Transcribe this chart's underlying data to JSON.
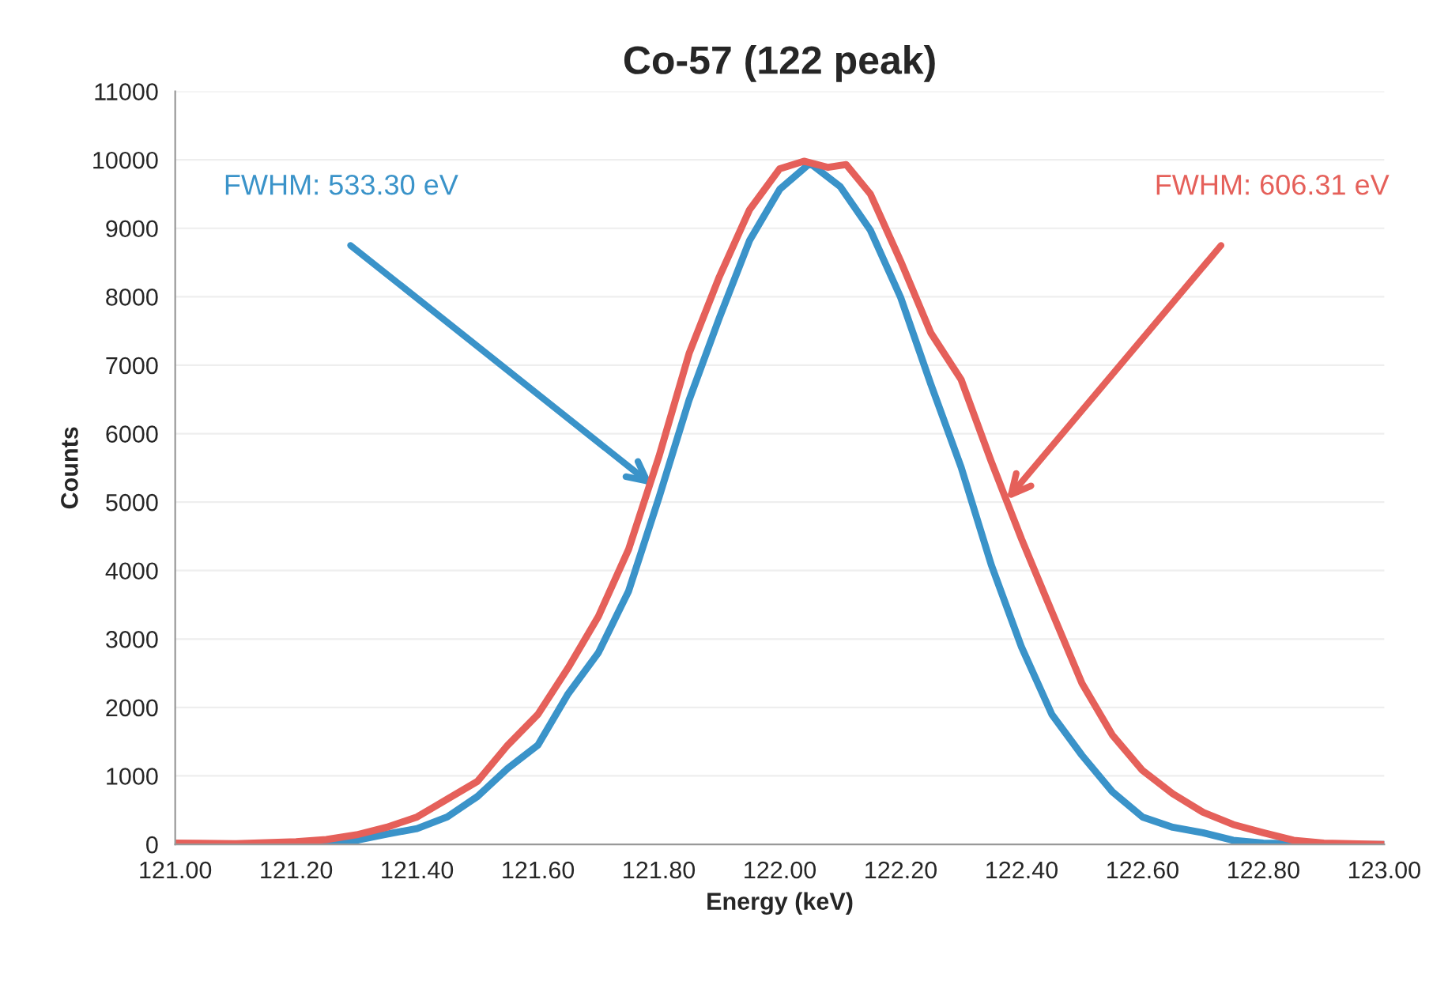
{
  "chart_data": {
    "type": "line",
    "title": "Co-57 (122 peak)",
    "xlabel": "Energy (keV)",
    "ylabel": "Counts",
    "xlim": [
      121.0,
      123.0
    ],
    "xticks": [
      {
        "value": 121.0,
        "label": "121.00"
      },
      {
        "value": 121.2,
        "label": "121.20"
      },
      {
        "value": 121.4,
        "label": "121.40"
      },
      {
        "value": 121.6,
        "label": "121.60"
      },
      {
        "value": 121.8,
        "label": "121.80"
      },
      {
        "value": 122.0,
        "label": "122.00"
      },
      {
        "value": 122.2,
        "label": "122.20"
      },
      {
        "value": 122.4,
        "label": "122.40"
      },
      {
        "value": 122.6,
        "label": "122.60"
      },
      {
        "value": 122.8,
        "label": "122.80"
      },
      {
        "value": 123.0,
        "label": "123.00"
      }
    ],
    "ylim": [
      0,
      11000
    ],
    "yticks": [
      0,
      1000,
      2000,
      3000,
      4000,
      5000,
      6000,
      7000,
      8000,
      9000,
      10000,
      11000
    ],
    "grid": "y",
    "line_style": "solid",
    "marker": "none",
    "series": [
      {
        "color": "#3a93c9",
        "x": [
          121.0,
          121.1,
          121.2,
          121.3,
          121.35,
          121.4,
          121.45,
          121.5,
          121.55,
          121.6,
          121.65,
          121.7,
          121.75,
          121.8,
          121.85,
          121.9,
          121.95,
          122.0,
          122.05,
          122.1,
          122.15,
          122.2,
          122.25,
          122.3,
          122.35,
          122.4,
          122.45,
          122.5,
          122.55,
          122.6,
          122.65,
          122.7,
          122.75,
          122.8,
          122.9,
          123.0
        ],
        "values": [
          0,
          0,
          20,
          60,
          150,
          230,
          400,
          700,
          1110,
          1450,
          2200,
          2800,
          3700,
          5060,
          6490,
          7690,
          8820,
          9570,
          9950,
          9610,
          8970,
          7990,
          6720,
          5510,
          4080,
          2880,
          1900,
          1300,
          770,
          400,
          250,
          170,
          60,
          20,
          0,
          0
        ]
      },
      {
        "color": "#e5605a",
        "x": [
          121.0,
          121.1,
          121.2,
          121.25,
          121.3,
          121.35,
          121.4,
          121.45,
          121.5,
          121.55,
          121.6,
          121.65,
          121.7,
          121.75,
          121.8,
          121.85,
          121.9,
          121.95,
          122.0,
          122.04,
          122.08,
          122.11,
          122.15,
          122.2,
          122.25,
          122.3,
          122.35,
          122.4,
          122.45,
          122.5,
          122.55,
          122.6,
          122.65,
          122.7,
          122.75,
          122.8,
          122.85,
          122.9,
          123.0
        ],
        "values": [
          20,
          10,
          40,
          70,
          140,
          250,
          400,
          660,
          920,
          1450,
          1900,
          2580,
          3330,
          4310,
          5660,
          7170,
          8290,
          9270,
          9870,
          9980,
          9890,
          9930,
          9500,
          8520,
          7470,
          6790,
          5590,
          4460,
          3400,
          2350,
          1600,
          1080,
          740,
          470,
          290,
          170,
          60,
          20,
          0
        ]
      }
    ],
    "annotations": [
      "FWHM: 533.30 eV",
      "FWHM: 606.31 eV"
    ]
  }
}
